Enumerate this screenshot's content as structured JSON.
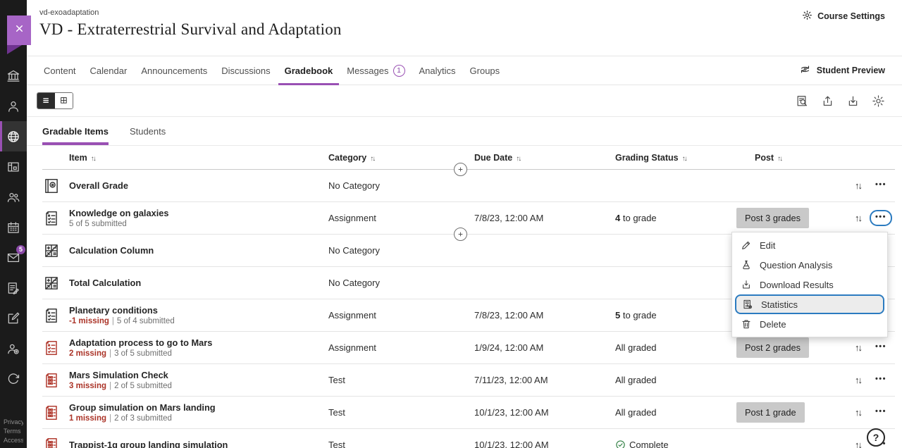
{
  "header": {
    "breadcrumb": "vd-exoadaptation",
    "title": "VD - Extraterrestrial Survival and Adaptation",
    "course_settings": "Course Settings"
  },
  "nav": {
    "tabs": [
      {
        "label": "Content"
      },
      {
        "label": "Calendar"
      },
      {
        "label": "Announcements"
      },
      {
        "label": "Discussions"
      },
      {
        "label": "Gradebook",
        "active": true
      },
      {
        "label": "Messages",
        "badge": "1"
      },
      {
        "label": "Analytics"
      },
      {
        "label": "Groups"
      }
    ],
    "student_preview": "Student Preview"
  },
  "sidebar": {
    "items": [
      {
        "icon": "institution-icon"
      },
      {
        "icon": "profile-icon"
      },
      {
        "icon": "courses-globe-icon",
        "active": true
      },
      {
        "icon": "activity-stream-icon"
      },
      {
        "icon": "organizations-icon"
      },
      {
        "icon": "calendar-icon"
      },
      {
        "icon": "messages-icon",
        "badge": "5"
      },
      {
        "icon": "grades-icon"
      },
      {
        "icon": "compose-icon"
      },
      {
        "icon": "roster-icon"
      },
      {
        "icon": "sign-out-icon"
      }
    ],
    "footer_links": [
      "Privacy",
      "Terms",
      "Accessibility"
    ]
  },
  "toolbar": {
    "view_toggles": [
      {
        "icon": "list-view-icon",
        "active": true
      },
      {
        "icon": "grid-view-icon"
      }
    ],
    "icons": [
      "search-results-icon",
      "upload-icon",
      "download-icon",
      "settings-icon"
    ]
  },
  "view_tabs": [
    {
      "label": "Gradable Items",
      "active": true
    },
    {
      "label": "Students"
    }
  ],
  "table": {
    "columns": [
      "Item",
      "Category",
      "Due Date",
      "Grading Status",
      "Post"
    ],
    "rows": [
      {
        "icon": "overall-grade-icon",
        "title": "Overall Grade",
        "category": "No Category"
      },
      {
        "icon": "assignment-icon",
        "title": "Knowledge on galaxies",
        "submitted": "5 of 5 submitted",
        "category": "Assignment",
        "due": "7/8/23, 12:00 AM",
        "status_strong": "4",
        "status_rest": "to grade",
        "post": "Post 3 grades",
        "focused": true
      },
      {
        "icon": "calculation-icon",
        "title": "Calculation Column",
        "category": "No Category"
      },
      {
        "icon": "calculation-icon",
        "title": "Total Calculation",
        "category": "No Category"
      },
      {
        "icon": "assignment-icon",
        "title": "Planetary conditions",
        "missing": "-1 missing",
        "submitted": "5 of 4 submitted",
        "category": "Assignment",
        "due": "7/8/23, 12:00 AM",
        "status_strong": "5",
        "status_rest": "to grade"
      },
      {
        "icon": "assignment-icon",
        "icon_color": "red",
        "title": "Adaptation process to go to Mars",
        "missing": "2 missing",
        "submitted": "3 of 5 submitted",
        "category": "Assignment",
        "due": "1/9/24, 12:00 AM",
        "status": "All graded",
        "post": "Post 2 grades"
      },
      {
        "icon": "test-icon",
        "icon_color": "red",
        "title": "Mars Simulation Check",
        "missing": "3 missing",
        "submitted": "2 of 5 submitted",
        "category": "Test",
        "due": "7/11/23, 12:00 AM",
        "status": "All graded"
      },
      {
        "icon": "test-icon",
        "icon_color": "red",
        "title": "Group simulation on Mars landing",
        "missing": "1 missing",
        "submitted": "2 of 3 submitted",
        "category": "Test",
        "due": "10/1/23, 12:00 AM",
        "status": "All graded",
        "post": "Post 1 grade"
      },
      {
        "icon": "test-icon",
        "icon_color": "red",
        "title": "Trappist-1g group landing simulation",
        "category": "Test",
        "due": "10/1/23, 12:00 AM",
        "status": "Complete",
        "complete": true
      }
    ]
  },
  "menu": {
    "items": [
      {
        "icon": "edit-icon",
        "label": "Edit"
      },
      {
        "icon": "question-analysis-icon",
        "label": "Question Analysis"
      },
      {
        "icon": "download-results-icon",
        "label": "Download Results"
      },
      {
        "icon": "statistics-icon",
        "label": "Statistics",
        "active": true
      },
      {
        "icon": "delete-icon",
        "label": "Delete"
      }
    ]
  },
  "help": {
    "label": "?"
  },
  "colors": {
    "accent_purple": "#9950b3",
    "missing_red": "#ab3428",
    "focus_blue": "#2b7bc0",
    "complete_green": "#2c7d3f",
    "post_button_bg": "#c9c9c9",
    "sidebar_bg": "#1b1b1b"
  }
}
